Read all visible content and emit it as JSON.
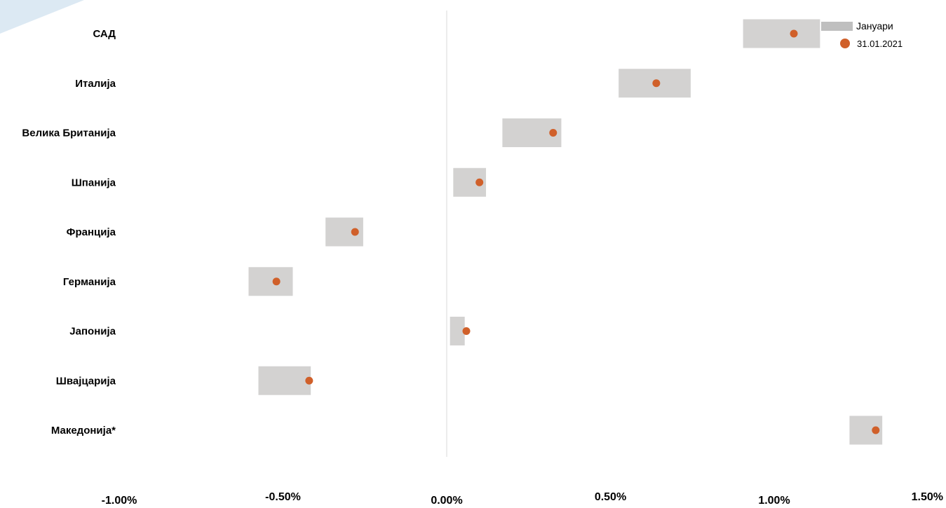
{
  "chart_data": {
    "type": "range-dot",
    "categories": [
      "САД",
      "Италија",
      "Велика Британија",
      "Шпанија",
      "Франција",
      "Германија",
      "Јапонија",
      "Швајцарија",
      "Македонија*"
    ],
    "series": [
      {
        "name": "Јануари",
        "kind": "range-bar",
        "ranges": [
          [
            0.905,
            1.14
          ],
          [
            0.525,
            0.745
          ],
          [
            0.17,
            0.35
          ],
          [
            0.02,
            0.12
          ],
          [
            -0.37,
            -0.255
          ],
          [
            -0.605,
            -0.47
          ],
          [
            0.01,
            0.055
          ],
          [
            -0.575,
            -0.415
          ],
          [
            1.23,
            1.33
          ]
        ]
      },
      {
        "name": "31.01.2021",
        "kind": "dot",
        "values": [
          1.06,
          0.64,
          0.325,
          0.1,
          -0.28,
          -0.52,
          0.06,
          -0.42,
          1.31
        ]
      }
    ],
    "x_ticks": [
      "-1.00%",
      "-0.50%",
      "0.00%",
      "0.50%",
      "1.00%",
      "1.50%"
    ],
    "x_tick_values": [
      -1.0,
      -0.5,
      0.0,
      0.5,
      1.0,
      1.5
    ],
    "xlim": [
      -1.0,
      1.5
    ],
    "unit": "%",
    "grid": false,
    "zero_line": true,
    "legend_position": "top-right",
    "colors": {
      "range": "#d3d2d1",
      "legend_range": "#bfbfbf",
      "dot": "#d0602a",
      "zero_line": "#d9d9d9",
      "corner_accent": "#dce9f3"
    }
  }
}
